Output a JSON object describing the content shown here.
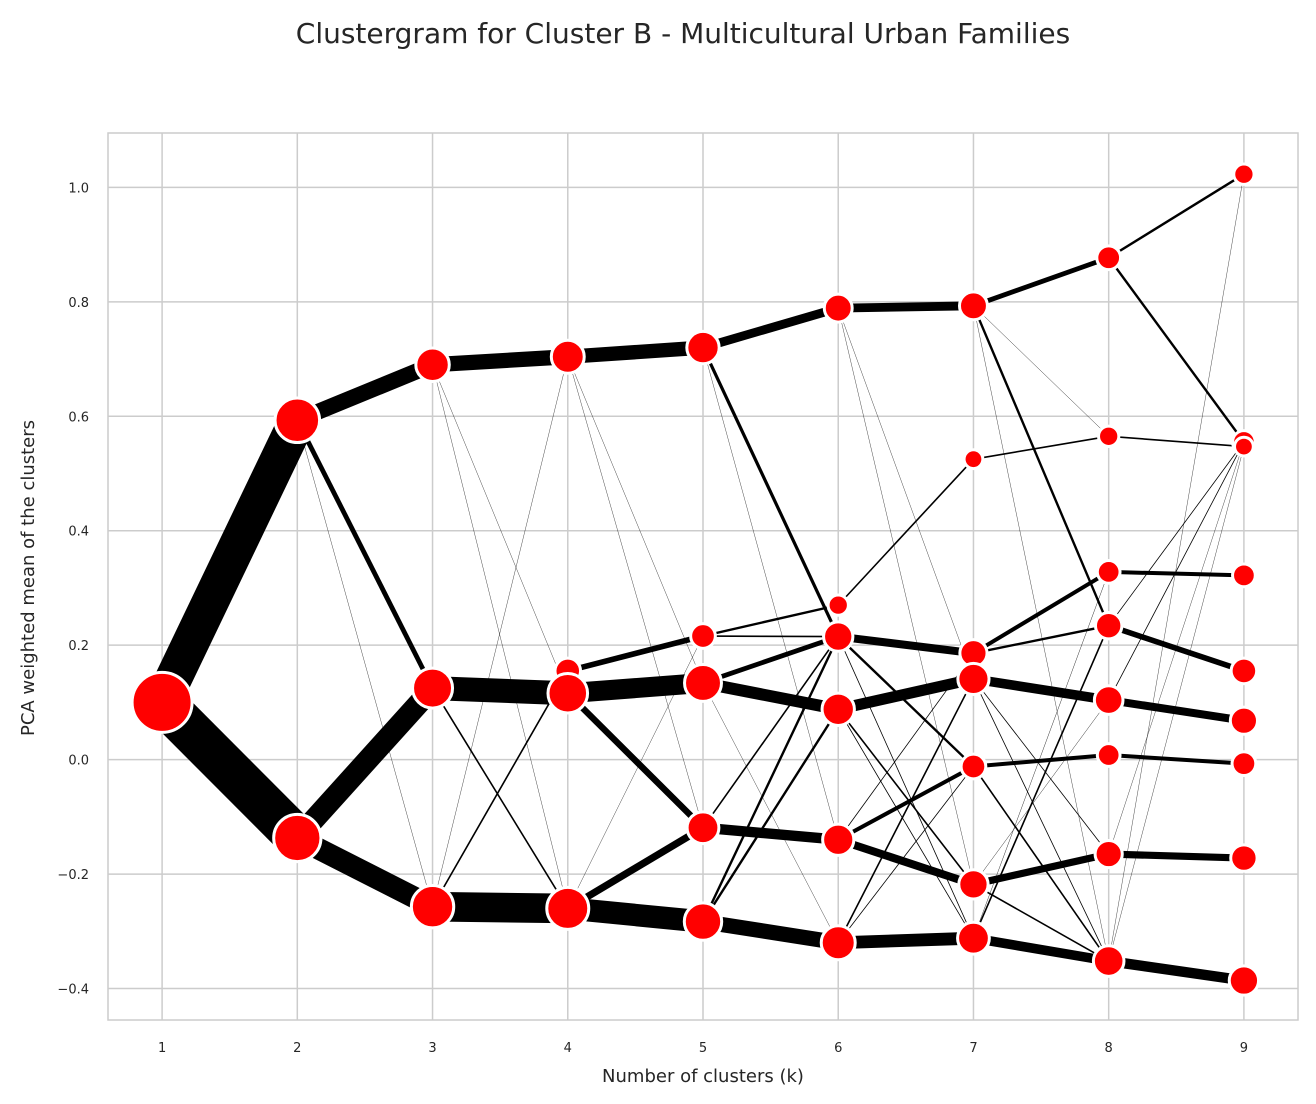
{
  "chart_data": {
    "type": "clustergram",
    "title": "Clustergram for Cluster B - Multicultural Urban Families",
    "xlabel": "Number of clusters (k)",
    "ylabel": "PCA weighted mean of the clusters",
    "xlim": [
      0.6,
      9.4
    ],
    "ylim": [
      -0.455,
      1.095
    ],
    "x_ticks": [
      1,
      2,
      3,
      4,
      5,
      6,
      7,
      8,
      9
    ],
    "y_ticks": [
      {
        "value": 1.0,
        "label": "1.0"
      },
      {
        "value": 0.8,
        "label": "0.8"
      },
      {
        "value": 0.6,
        "label": "0.6"
      },
      {
        "value": 0.4,
        "label": "0.4"
      },
      {
        "value": 0.2,
        "label": "0.2"
      },
      {
        "value": 0.0,
        "label": "0.0"
      },
      {
        "value": -0.2,
        "label": "−0.2"
      },
      {
        "value": -0.4,
        "label": "−0.4"
      }
    ],
    "grid": true,
    "colors": {
      "node": "#ff0000",
      "node_edge": "#ffffff",
      "link": "#000000",
      "grid": "#cccccc",
      "spine": "#cccccc"
    },
    "nodes": [
      {
        "k": 1,
        "mean": 0.1,
        "size": 1.0
      },
      {
        "k": 2,
        "mean": 0.593,
        "size": 0.46
      },
      {
        "k": 2,
        "mean": -0.137,
        "size": 0.54
      },
      {
        "k": 3,
        "mean": 0.69,
        "size": 0.2
      },
      {
        "k": 3,
        "mean": 0.125,
        "size": 0.34
      },
      {
        "k": 3,
        "mean": -0.257,
        "size": 0.4
      },
      {
        "k": 4,
        "mean": 0.704,
        "size": 0.19
      },
      {
        "k": 4,
        "mean": 0.155,
        "size": 0.08
      },
      {
        "k": 4,
        "mean": 0.116,
        "size": 0.33
      },
      {
        "k": 4,
        "mean": -0.26,
        "size": 0.39
      },
      {
        "k": 5,
        "mean": 0.72,
        "size": 0.18
      },
      {
        "k": 5,
        "mean": 0.216,
        "size": 0.07
      },
      {
        "k": 5,
        "mean": 0.134,
        "size": 0.27
      },
      {
        "k": 5,
        "mean": -0.119,
        "size": 0.17
      },
      {
        "k": 5,
        "mean": -0.283,
        "size": 0.28
      },
      {
        "k": 6,
        "mean": 0.789,
        "size": 0.11
      },
      {
        "k": 6,
        "mean": 0.27,
        "size": 0.03
      },
      {
        "k": 6,
        "mean": 0.215,
        "size": 0.13
      },
      {
        "k": 6,
        "mean": 0.088,
        "size": 0.18
      },
      {
        "k": 6,
        "mean": -0.14,
        "size": 0.16
      },
      {
        "k": 6,
        "mean": -0.32,
        "size": 0.21
      },
      {
        "k": 7,
        "mean": 0.793,
        "size": 0.11
      },
      {
        "k": 7,
        "mean": 0.525,
        "size": 0.02
      },
      {
        "k": 7,
        "mean": 0.186,
        "size": 0.1
      },
      {
        "k": 7,
        "mean": 0.141,
        "size": 0.16
      },
      {
        "k": 7,
        "mean": -0.012,
        "size": 0.07
      },
      {
        "k": 7,
        "mean": -0.218,
        "size": 0.13
      },
      {
        "k": 7,
        "mean": -0.312,
        "size": 0.17
      },
      {
        "k": 8,
        "mean": 0.877,
        "size": 0.06
      },
      {
        "k": 8,
        "mean": 0.565,
        "size": 0.03
      },
      {
        "k": 8,
        "mean": 0.328,
        "size": 0.05
      },
      {
        "k": 8,
        "mean": 0.234,
        "size": 0.09
      },
      {
        "k": 8,
        "mean": 0.104,
        "size": 0.12
      },
      {
        "k": 8,
        "mean": 0.008,
        "size": 0.05
      },
      {
        "k": 8,
        "mean": -0.165,
        "size": 0.1
      },
      {
        "k": 8,
        "mean": -0.352,
        "size": 0.15
      },
      {
        "k": 9,
        "mean": 1.023,
        "size": 0.03
      },
      {
        "k": 9,
        "mean": 0.555,
        "size": 0.05
      },
      {
        "k": 9,
        "mean": 0.547,
        "size": 0.02
      },
      {
        "k": 9,
        "mean": 0.322,
        "size": 0.05
      },
      {
        "k": 9,
        "mean": 0.155,
        "size": 0.08
      },
      {
        "k": 9,
        "mean": 0.068,
        "size": 0.1
      },
      {
        "k": 9,
        "mean": -0.007,
        "size": 0.06
      },
      {
        "k": 9,
        "mean": -0.172,
        "size": 0.09
      },
      {
        "k": 9,
        "mean": -0.386,
        "size": 0.13
      }
    ],
    "links": [
      {
        "from": [
          1,
          0.1
        ],
        "to": [
          2,
          0.593
        ],
        "weight": 0.46
      },
      {
        "from": [
          1,
          0.1
        ],
        "to": [
          2,
          -0.137
        ],
        "weight": 0.54
      },
      {
        "from": [
          2,
          0.593
        ],
        "to": [
          3,
          0.69
        ],
        "weight": 0.2
      },
      {
        "from": [
          2,
          0.593
        ],
        "to": [
          3,
          0.125
        ],
        "weight": 0.06
      },
      {
        "from": [
          2,
          0.593
        ],
        "to": [
          3,
          -0.257
        ],
        "weight": 0.003
      },
      {
        "from": [
          2,
          -0.137
        ],
        "to": [
          3,
          0.125
        ],
        "weight": 0.27
      },
      {
        "from": [
          2,
          -0.137
        ],
        "to": [
          3,
          -0.257
        ],
        "weight": 0.27
      },
      {
        "from": [
          3,
          0.69
        ],
        "to": [
          4,
          0.704
        ],
        "weight": 0.19
      },
      {
        "from": [
          3,
          0.69
        ],
        "to": [
          4,
          0.116
        ],
        "weight": 0.004
      },
      {
        "from": [
          3,
          0.69
        ],
        "to": [
          4,
          -0.26
        ],
        "weight": 0.002
      },
      {
        "from": [
          3,
          0.125
        ],
        "to": [
          4,
          0.116
        ],
        "weight": 0.3
      },
      {
        "from": [
          3,
          0.125
        ],
        "to": [
          4,
          -0.26
        ],
        "weight": 0.02
      },
      {
        "from": [
          3,
          -0.257
        ],
        "to": [
          4,
          -0.26
        ],
        "weight": 0.37
      },
      {
        "from": [
          3,
          -0.257
        ],
        "to": [
          4,
          0.155
        ],
        "weight": 0.02
      },
      {
        "from": [
          3,
          -0.257
        ],
        "to": [
          4,
          0.704
        ],
        "weight": 0.002
      },
      {
        "from": [
          4,
          0.704
        ],
        "to": [
          5,
          0.72
        ],
        "weight": 0.18
      },
      {
        "from": [
          4,
          0.704
        ],
        "to": [
          5,
          0.134
        ],
        "weight": 0.004
      },
      {
        "from": [
          4,
          0.704
        ],
        "to": [
          5,
          -0.119
        ],
        "weight": 0.003
      },
      {
        "from": [
          4,
          0.155
        ],
        "to": [
          5,
          0.216
        ],
        "weight": 0.07
      },
      {
        "from": [
          4,
          0.116
        ],
        "to": [
          5,
          0.134
        ],
        "weight": 0.25
      },
      {
        "from": [
          4,
          0.116
        ],
        "to": [
          5,
          -0.119
        ],
        "weight": 0.08
      },
      {
        "from": [
          4,
          -0.26
        ],
        "to": [
          5,
          -0.283
        ],
        "weight": 0.28
      },
      {
        "from": [
          4,
          -0.26
        ],
        "to": [
          5,
          -0.119
        ],
        "weight": 0.09
      },
      {
        "from": [
          4,
          -0.26
        ],
        "to": [
          5,
          0.216
        ],
        "weight": 0.003
      },
      {
        "from": [
          5,
          0.72
        ],
        "to": [
          6,
          0.789
        ],
        "weight": 0.11
      },
      {
        "from": [
          5,
          0.72
        ],
        "to": [
          6,
          0.215
        ],
        "weight": 0.04
      },
      {
        "from": [
          5,
          0.72
        ],
        "to": [
          6,
          -0.14
        ],
        "weight": 0.003
      },
      {
        "from": [
          5,
          0.216
        ],
        "to": [
          6,
          0.27
        ],
        "weight": 0.03
      },
      {
        "from": [
          5,
          0.216
        ],
        "to": [
          6,
          0.215
        ],
        "weight": 0.02
      },
      {
        "from": [
          5,
          0.134
        ],
        "to": [
          6,
          0.088
        ],
        "weight": 0.15
      },
      {
        "from": [
          5,
          0.134
        ],
        "to": [
          6,
          0.215
        ],
        "weight": 0.06
      },
      {
        "from": [
          5,
          0.134
        ],
        "to": [
          6,
          -0.32
        ],
        "weight": 0.003
      },
      {
        "from": [
          5,
          -0.119
        ],
        "to": [
          6,
          -0.14
        ],
        "weight": 0.13
      },
      {
        "from": [
          5,
          -0.119
        ],
        "to": [
          6,
          0.215
        ],
        "weight": 0.02
      },
      {
        "from": [
          5,
          -0.283
        ],
        "to": [
          6,
          -0.32
        ],
        "weight": 0.19
      },
      {
        "from": [
          5,
          -0.283
        ],
        "to": [
          6,
          0.088
        ],
        "weight": 0.03
      },
      {
        "from": [
          5,
          -0.283
        ],
        "to": [
          6,
          0.215
        ],
        "weight": 0.03
      },
      {
        "from": [
          6,
          0.789
        ],
        "to": [
          7,
          0.793
        ],
        "weight": 0.11
      },
      {
        "from": [
          6,
          0.789
        ],
        "to": [
          7,
          0.141
        ],
        "weight": 0.002
      },
      {
        "from": [
          6,
          0.789
        ],
        "to": [
          7,
          -0.218
        ],
        "weight": 0.002
      },
      {
        "from": [
          6,
          0.27
        ],
        "to": [
          7,
          0.525
        ],
        "weight": 0.02
      },
      {
        "from": [
          6,
          0.215
        ],
        "to": [
          7,
          0.186
        ],
        "weight": 0.1
      },
      {
        "from": [
          6,
          0.215
        ],
        "to": [
          7,
          -0.012
        ],
        "weight": 0.03
      },
      {
        "from": [
          6,
          0.215
        ],
        "to": [
          7,
          -0.312
        ],
        "weight": 0.01
      },
      {
        "from": [
          6,
          0.088
        ],
        "to": [
          7,
          0.141
        ],
        "weight": 0.14
      },
      {
        "from": [
          6,
          0.088
        ],
        "to": [
          7,
          -0.218
        ],
        "weight": 0.02
      },
      {
        "from": [
          6,
          0.088
        ],
        "to": [
          7,
          -0.312
        ],
        "weight": 0.01
      },
      {
        "from": [
          6,
          -0.14
        ],
        "to": [
          7,
          -0.012
        ],
        "weight": 0.05
      },
      {
        "from": [
          6,
          -0.14
        ],
        "to": [
          7,
          -0.218
        ],
        "weight": 0.1
      },
      {
        "from": [
          6,
          -0.14
        ],
        "to": [
          7,
          0.186
        ],
        "weight": 0.01
      },
      {
        "from": [
          6,
          -0.32
        ],
        "to": [
          7,
          -0.312
        ],
        "weight": 0.16
      },
      {
        "from": [
          6,
          -0.32
        ],
        "to": [
          7,
          0.141
        ],
        "weight": 0.02
      },
      {
        "from": [
          6,
          -0.32
        ],
        "to": [
          7,
          -0.012
        ],
        "weight": 0.01
      },
      {
        "from": [
          7,
          0.793
        ],
        "to": [
          8,
          0.877
        ],
        "weight": 0.06
      },
      {
        "from": [
          7,
          0.793
        ],
        "to": [
          8,
          0.234
        ],
        "weight": 0.03
      },
      {
        "from": [
          7,
          0.793
        ],
        "to": [
          8,
          0.565
        ],
        "weight": 0.005
      },
      {
        "from": [
          7,
          0.793
        ],
        "to": [
          8,
          -0.352
        ],
        "weight": 0.004
      },
      {
        "from": [
          7,
          0.525
        ],
        "to": [
          8,
          0.565
        ],
        "weight": 0.02
      },
      {
        "from": [
          7,
          0.186
        ],
        "to": [
          8,
          0.328
        ],
        "weight": 0.05
      },
      {
        "from": [
          7,
          0.186
        ],
        "to": [
          8,
          0.234
        ],
        "weight": 0.03
      },
      {
        "from": [
          7,
          0.141
        ],
        "to": [
          8,
          0.104
        ],
        "weight": 0.12
      },
      {
        "from": [
          7,
          0.141
        ],
        "to": [
          8,
          -0.165
        ],
        "weight": 0.01
      },
      {
        "from": [
          7,
          0.141
        ],
        "to": [
          8,
          -0.352
        ],
        "weight": 0.01
      },
      {
        "from": [
          7,
          -0.012
        ],
        "to": [
          8,
          0.008
        ],
        "weight": 0.05
      },
      {
        "from": [
          7,
          -0.012
        ],
        "to": [
          8,
          -0.352
        ],
        "weight": 0.02
      },
      {
        "from": [
          7,
          -0.218
        ],
        "to": [
          8,
          -0.165
        ],
        "weight": 0.09
      },
      {
        "from": [
          7,
          -0.218
        ],
        "to": [
          8,
          -0.352
        ],
        "weight": 0.02
      },
      {
        "from": [
          7,
          -0.218
        ],
        "to": [
          8,
          0.104
        ],
        "weight": 0.005
      },
      {
        "from": [
          7,
          -0.312
        ],
        "to": [
          8,
          -0.352
        ],
        "weight": 0.12
      },
      {
        "from": [
          7,
          -0.312
        ],
        "to": [
          8,
          0.234
        ],
        "weight": 0.02
      },
      {
        "from": [
          7,
          -0.312
        ],
        "to": [
          8,
          0.328
        ],
        "weight": 0.005
      },
      {
        "from": [
          8,
          0.877
        ],
        "to": [
          9,
          1.023
        ],
        "weight": 0.03
      },
      {
        "from": [
          8,
          0.877
        ],
        "to": [
          9,
          0.555
        ],
        "weight": 0.03
      },
      {
        "from": [
          8,
          0.565
        ],
        "to": [
          9,
          0.547
        ],
        "weight": 0.02
      },
      {
        "from": [
          8,
          0.328
        ],
        "to": [
          9,
          0.322
        ],
        "weight": 0.05
      },
      {
        "from": [
          8,
          0.234
        ],
        "to": [
          9,
          0.155
        ],
        "weight": 0.07
      },
      {
        "from": [
          8,
          0.234
        ],
        "to": [
          9,
          0.555
        ],
        "weight": 0.01
      },
      {
        "from": [
          8,
          0.104
        ],
        "to": [
          9,
          0.068
        ],
        "weight": 0.1
      },
      {
        "from": [
          8,
          0.104
        ],
        "to": [
          9,
          0.555
        ],
        "weight": 0.01
      },
      {
        "from": [
          8,
          0.008
        ],
        "to": [
          9,
          -0.007
        ],
        "weight": 0.05
      },
      {
        "from": [
          8,
          -0.165
        ],
        "to": [
          9,
          -0.172
        ],
        "weight": 0.09
      },
      {
        "from": [
          8,
          -0.165
        ],
        "to": [
          9,
          0.555
        ],
        "weight": 0.003
      },
      {
        "from": [
          8,
          -0.352
        ],
        "to": [
          9,
          -0.386
        ],
        "weight": 0.13
      },
      {
        "from": [
          8,
          -0.352
        ],
        "to": [
          9,
          0.547
        ],
        "weight": 0.004
      },
      {
        "from": [
          8,
          -0.352
        ],
        "to": [
          9,
          1.023
        ],
        "weight": 0.002
      }
    ]
  }
}
